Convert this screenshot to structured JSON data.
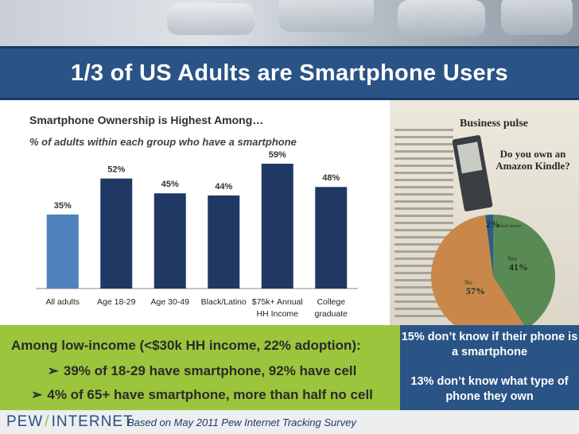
{
  "title": "1/3 of US Adults are Smartphone Users",
  "subtitle": "Smartphone Ownership is Highest Among…",
  "subtitle2": "% of adults within each group who have a smartphone",
  "chart_data": {
    "type": "bar",
    "categories": [
      [
        "All adults"
      ],
      [
        "Age 18-29"
      ],
      [
        "Age 30-49"
      ],
      [
        "Black/Latino"
      ],
      [
        "$75k+ Annual",
        "HH Income"
      ],
      [
        "College",
        "graduate"
      ]
    ],
    "values": [
      35,
      52,
      45,
      44,
      59,
      48
    ],
    "value_labels": [
      "35%",
      "52%",
      "45%",
      "44%",
      "59%",
      "48%"
    ],
    "ylim": [
      0,
      65
    ],
    "grid": false,
    "colors": [
      "#4f81bd",
      "#1f3864",
      "#1f3864",
      "#1f3864",
      "#1f3864",
      "#1f3864"
    ]
  },
  "newspaper": {
    "headline": "Business pulse",
    "question": "Do you own an Amazon Kindle?",
    "slices": [
      {
        "label": "Yes",
        "value": 41,
        "text": "41%",
        "color": "#5a8a54"
      },
      {
        "label": "No",
        "value": 57,
        "text": "57%",
        "color": "#c9884a"
      },
      {
        "label": "I don't know",
        "value": 2,
        "text": "2%",
        "color": "#2f5a8a"
      }
    ]
  },
  "green_box": {
    "line1": "Among low-income (<$30k HH income, 22% adoption):",
    "line2": "39% of 18-29 have smartphone, 92% have cell",
    "line3": "4% of 65+ have smartphone, more than half no cell",
    "bullet": "➢"
  },
  "blue_box": {
    "line1": "15% don’t know if their phone is a smartphone",
    "line2": "13% don’t know what type of phone they own"
  },
  "footer": {
    "logo_left": "PEW",
    "logo_sep": "/",
    "logo_right": "INTERNET",
    "note": "Based on May 2011 Pew Internet Tracking Survey"
  }
}
